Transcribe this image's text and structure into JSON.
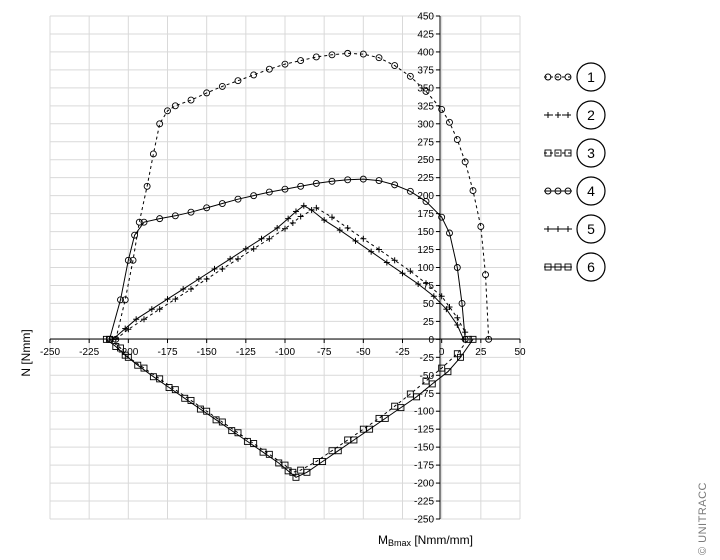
{
  "copyright": "© UNITRACC",
  "chart_data": {
    "type": "scatter",
    "xlabel_main": "M",
    "xlabel_sub": "Bmax",
    "xlabel_unit": " [Nmm/mm]",
    "ylabel": "N [Nmm]",
    "xlim": [
      -250,
      50
    ],
    "ylim": [
      -250,
      450
    ],
    "x_ticks": [
      -250,
      -225,
      -200,
      -175,
      -150,
      -125,
      -100,
      -75,
      -50,
      -25,
      0,
      25,
      50
    ],
    "y_ticks": [
      450,
      425,
      400,
      375,
      350,
      325,
      300,
      275,
      250,
      225,
      200,
      175,
      150,
      125,
      100,
      75,
      50,
      25,
      0,
      -25,
      -50,
      -75,
      -100,
      -125,
      -150,
      -175,
      -200,
      -225,
      -250
    ],
    "grid": true,
    "legend": "right",
    "series": [
      {
        "name": "1",
        "marker": "circle",
        "line": "dashed",
        "points": [
          [
            -208,
            0
          ],
          [
            -202,
            55
          ],
          [
            -197,
            110
          ],
          [
            -193,
            163
          ],
          [
            -188,
            213
          ],
          [
            -184,
            258
          ],
          [
            -180,
            300
          ],
          [
            -175,
            318
          ],
          [
            -170,
            325
          ],
          [
            -160,
            333
          ],
          [
            -150,
            343
          ],
          [
            -140,
            352
          ],
          [
            -130,
            360
          ],
          [
            -120,
            368
          ],
          [
            -110,
            376
          ],
          [
            -100,
            383
          ],
          [
            -90,
            388
          ],
          [
            -80,
            393
          ],
          [
            -70,
            396
          ],
          [
            -60,
            398
          ],
          [
            -50,
            397
          ],
          [
            -40,
            392
          ],
          [
            -30,
            381
          ],
          [
            -20,
            366
          ],
          [
            -10,
            345
          ],
          [
            0,
            320
          ],
          [
            5,
            302
          ],
          [
            10,
            278
          ],
          [
            15,
            247
          ],
          [
            20,
            207
          ],
          [
            25,
            157
          ],
          [
            28,
            90
          ],
          [
            30,
            0
          ]
        ]
      },
      {
        "name": "2",
        "marker": "plus",
        "line": "dashed",
        "points": [
          [
            -208,
            0
          ],
          [
            -200,
            14
          ],
          [
            -190,
            28
          ],
          [
            -180,
            42
          ],
          [
            -170,
            56
          ],
          [
            -160,
            70
          ],
          [
            -150,
            84
          ],
          [
            -140,
            98
          ],
          [
            -130,
            112
          ],
          [
            -120,
            126
          ],
          [
            -110,
            140
          ],
          [
            -100,
            154
          ],
          [
            -95,
            162
          ],
          [
            -90,
            171
          ],
          [
            -80,
            183
          ],
          [
            -70,
            170
          ],
          [
            -60,
            155
          ],
          [
            -50,
            140
          ],
          [
            -40,
            125
          ],
          [
            -30,
            110
          ],
          [
            -20,
            95
          ],
          [
            -10,
            78
          ],
          [
            0,
            60
          ],
          [
            5,
            45
          ],
          [
            10,
            30
          ],
          [
            15,
            10
          ]
        ]
      },
      {
        "name": "3",
        "marker": "square",
        "line": "dashed",
        "points": [
          [
            -212,
            0
          ],
          [
            -205,
            -12
          ],
          [
            -200,
            -25
          ],
          [
            -190,
            -40
          ],
          [
            -180,
            -55
          ],
          [
            -170,
            -70
          ],
          [
            -160,
            -85
          ],
          [
            -150,
            -100
          ],
          [
            -140,
            -115
          ],
          [
            -130,
            -130
          ],
          [
            -120,
            -145
          ],
          [
            -110,
            -160
          ],
          [
            -100,
            -175
          ],
          [
            -95,
            -185
          ],
          [
            -90,
            -182
          ],
          [
            -80,
            -170
          ],
          [
            -70,
            -155
          ],
          [
            -60,
            -140
          ],
          [
            -50,
            -125
          ],
          [
            -40,
            -110
          ],
          [
            -30,
            -93
          ],
          [
            -20,
            -76
          ],
          [
            -10,
            -58
          ],
          [
            0,
            -40
          ],
          [
            10,
            -20
          ],
          [
            17,
            0
          ]
        ]
      },
      {
        "name": "4",
        "marker": "circle",
        "line": "solid",
        "points": [
          [
            -212,
            0
          ],
          [
            -205,
            55
          ],
          [
            -200,
            110
          ],
          [
            -196,
            145
          ],
          [
            -190,
            163
          ],
          [
            -180,
            168
          ],
          [
            -170,
            172
          ],
          [
            -160,
            177
          ],
          [
            -150,
            183
          ],
          [
            -140,
            189
          ],
          [
            -130,
            195
          ],
          [
            -120,
            200
          ],
          [
            -110,
            205
          ],
          [
            -100,
            209
          ],
          [
            -90,
            213
          ],
          [
            -80,
            217
          ],
          [
            -70,
            220
          ],
          [
            -60,
            222
          ],
          [
            -50,
            223
          ],
          [
            -40,
            221
          ],
          [
            -30,
            215
          ],
          [
            -20,
            206
          ],
          [
            -10,
            192
          ],
          [
            0,
            170
          ],
          [
            5,
            148
          ],
          [
            10,
            100
          ],
          [
            13,
            50
          ],
          [
            15,
            0
          ]
        ]
      },
      {
        "name": "5",
        "marker": "plus",
        "line": "solid",
        "points": [
          [
            -210,
            0
          ],
          [
            -202,
            15
          ],
          [
            -195,
            28
          ],
          [
            -185,
            42
          ],
          [
            -175,
            56
          ],
          [
            -165,
            70
          ],
          [
            -155,
            84
          ],
          [
            -145,
            98
          ],
          [
            -135,
            112
          ],
          [
            -125,
            126
          ],
          [
            -115,
            140
          ],
          [
            -105,
            155
          ],
          [
            -98,
            168
          ],
          [
            -93,
            178
          ],
          [
            -88,
            186
          ],
          [
            -83,
            180
          ],
          [
            -75,
            166
          ],
          [
            -65,
            152
          ],
          [
            -55,
            137
          ],
          [
            -45,
            122
          ],
          [
            -35,
            107
          ],
          [
            -25,
            92
          ],
          [
            -15,
            77
          ],
          [
            -5,
            60
          ],
          [
            3,
            42
          ],
          [
            10,
            20
          ],
          [
            14,
            0
          ]
        ]
      },
      {
        "name": "6",
        "marker": "square",
        "line": "solid",
        "points": [
          [
            -214,
            0
          ],
          [
            -208,
            -10
          ],
          [
            -202,
            -22
          ],
          [
            -194,
            -36
          ],
          [
            -184,
            -52
          ],
          [
            -174,
            -67
          ],
          [
            -164,
            -82
          ],
          [
            -154,
            -97
          ],
          [
            -144,
            -112
          ],
          [
            -134,
            -127
          ],
          [
            -124,
            -142
          ],
          [
            -114,
            -157
          ],
          [
            -104,
            -172
          ],
          [
            -98,
            -183
          ],
          [
            -93,
            -192
          ],
          [
            -86,
            -185
          ],
          [
            -76,
            -170
          ],
          [
            -66,
            -155
          ],
          [
            -56,
            -140
          ],
          [
            -46,
            -125
          ],
          [
            -36,
            -110
          ],
          [
            -26,
            -95
          ],
          [
            -16,
            -80
          ],
          [
            -6,
            -62
          ],
          [
            4,
            -45
          ],
          [
            12,
            -25
          ],
          [
            20,
            0
          ]
        ]
      }
    ]
  }
}
